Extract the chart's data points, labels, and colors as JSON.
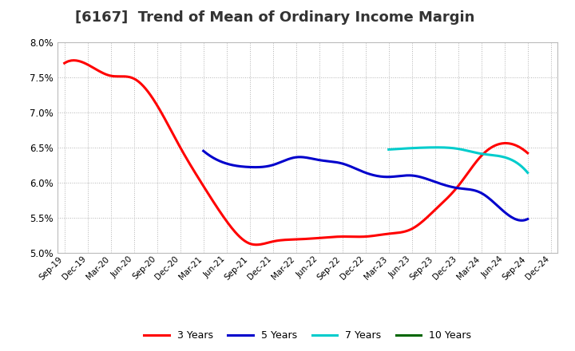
{
  "title": "[6167]  Trend of Mean of Ordinary Income Margin",
  "title_fontsize": 13,
  "ylim": [
    0.05,
    0.08
  ],
  "yticks": [
    0.05,
    0.055,
    0.06,
    0.065,
    0.07,
    0.075,
    0.08
  ],
  "background_color": "#ffffff",
  "plot_bg_color": "#ffffff",
  "grid_color": "#aaaaaa",
  "x_labels": [
    "Sep-19",
    "Dec-19",
    "Mar-20",
    "Jun-20",
    "Sep-20",
    "Dec-20",
    "Mar-21",
    "Jun-21",
    "Sep-21",
    "Dec-21",
    "Mar-22",
    "Jun-22",
    "Sep-22",
    "Dec-22",
    "Mar-23",
    "Jun-23",
    "Sep-23",
    "Dec-23",
    "Mar-24",
    "Jun-24",
    "Sep-24",
    "Dec-24"
  ],
  "series": {
    "3 Years": {
      "color": "#ff0000",
      "data_x": [
        0,
        1,
        2,
        3,
        4,
        5,
        6,
        7,
        8,
        9,
        10,
        11,
        12,
        13,
        14,
        15,
        16,
        17,
        18,
        19,
        20
      ],
      "data_y": [
        0.077,
        0.0768,
        0.0752,
        0.0748,
        0.071,
        0.065,
        0.0595,
        0.0545,
        0.0513,
        0.0516,
        0.0519,
        0.0521,
        0.0523,
        0.0523,
        0.0527,
        0.0534,
        0.0561,
        0.0595,
        0.0638,
        0.0656,
        0.0642
      ]
    },
    "5 Years": {
      "color": "#0000cc",
      "data_x": [
        6,
        7,
        8,
        9,
        10,
        11,
        12,
        13,
        14,
        15,
        16,
        17,
        18,
        19,
        20
      ],
      "data_y": [
        0.0645,
        0.0627,
        0.0622,
        0.0625,
        0.0636,
        0.0632,
        0.0627,
        0.0614,
        0.0608,
        0.061,
        0.0601,
        0.0592,
        0.0585,
        0.0558,
        0.0548
      ]
    },
    "7 Years": {
      "color": "#00cccc",
      "data_x": [
        14,
        15,
        16,
        17,
        18,
        19,
        20
      ],
      "data_y": [
        0.0647,
        0.0649,
        0.065,
        0.0648,
        0.0641,
        0.0636,
        0.0614
      ]
    },
    "10 Years": {
      "color": "#006600",
      "data_x": [],
      "data_y": []
    }
  },
  "legend_entries": [
    "3 Years",
    "5 Years",
    "7 Years",
    "10 Years"
  ],
  "legend_colors": [
    "#ff0000",
    "#0000cc",
    "#00cccc",
    "#006600"
  ]
}
